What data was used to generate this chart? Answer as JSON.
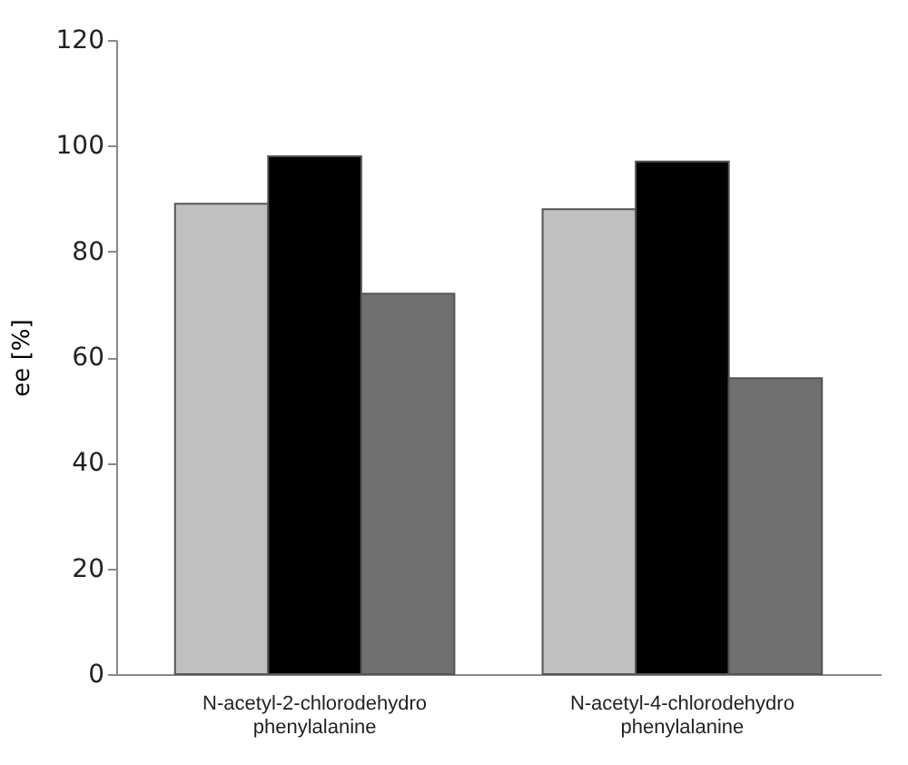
{
  "chart_data": {
    "type": "bar",
    "ylabel": "ee  [%]",
    "categories": [
      "N-acetyl-2-chlorodehydro phenylalanine",
      "N-acetyl-4-chlorodehydro phenylalanine"
    ],
    "series": [
      {
        "color": "#c0c0c0",
        "values": [
          89,
          88
        ]
      },
      {
        "color": "#000000",
        "values": [
          98,
          97
        ]
      },
      {
        "color": "#707070",
        "values": [
          72,
          56
        ]
      }
    ],
    "ylim": [
      0,
      120
    ],
    "yticks": [
      0,
      20,
      40,
      60,
      80,
      100,
      120
    ],
    "grid": false,
    "legend": false
  }
}
